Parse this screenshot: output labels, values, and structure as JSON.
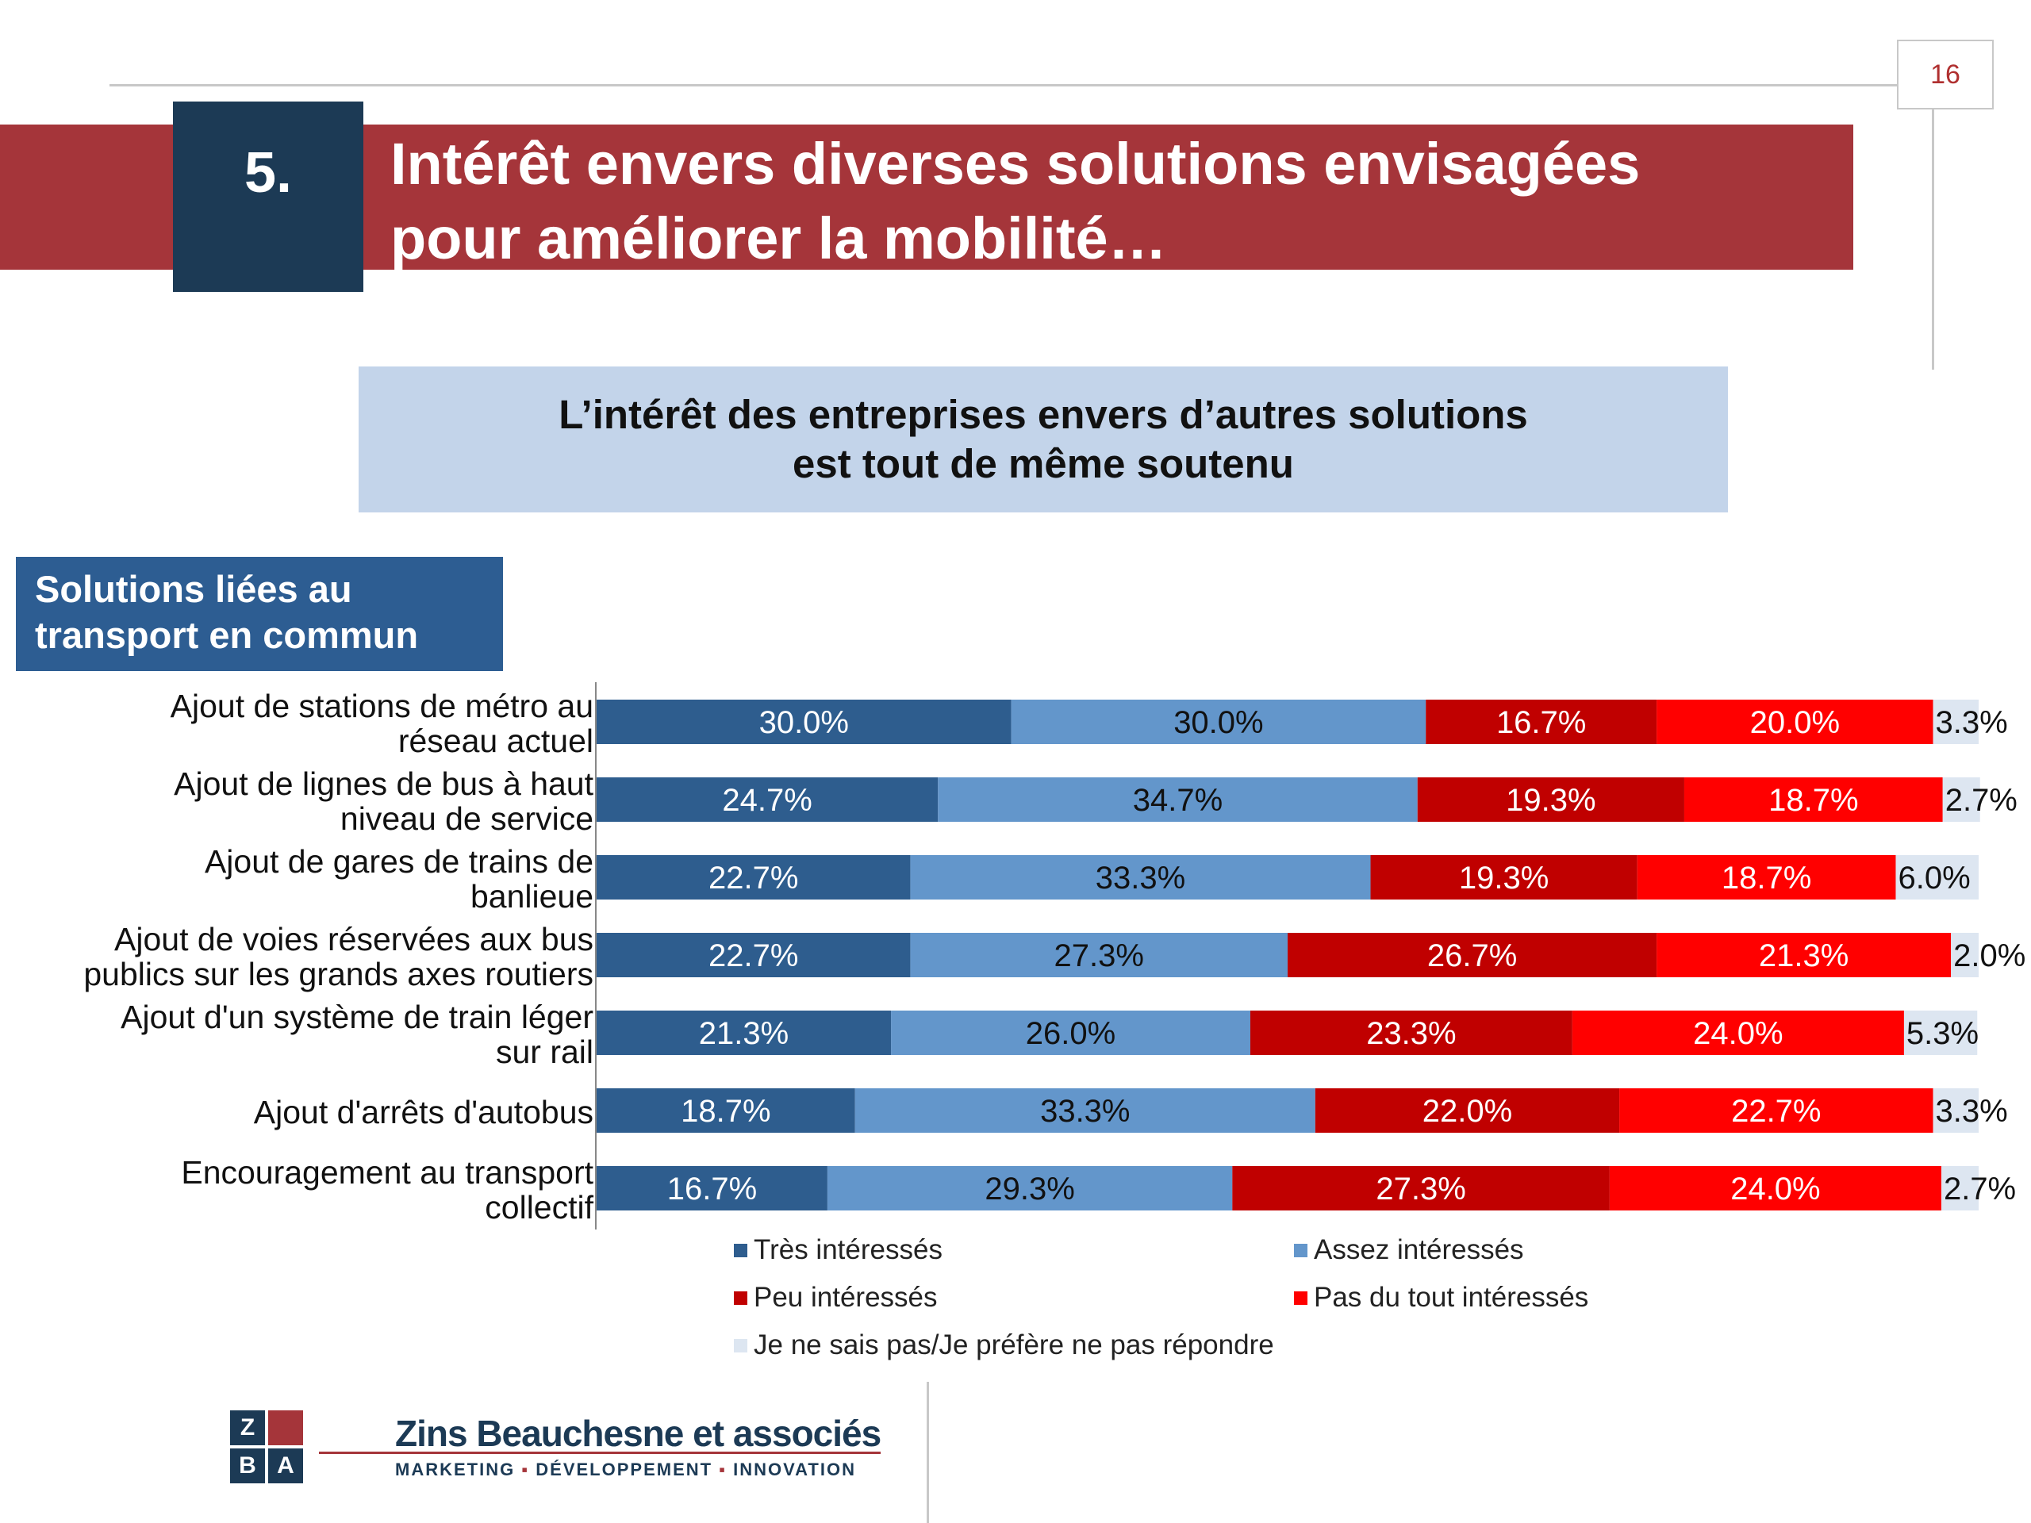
{
  "page": {
    "number": "16"
  },
  "header": {
    "section_number": "5.",
    "title_line1": "Intérêt envers diverses solutions envisagées",
    "title_line2": "pour améliorer la mobilité…"
  },
  "subtitle": {
    "line1": "L’intérêt des entreprises envers d’autres solutions",
    "line2": "est tout de même soutenu"
  },
  "category": {
    "line1": "Solutions liées au",
    "line2": "transport en commun"
  },
  "colors": {
    "tres": "#2e5d8e",
    "assez": "#6396cb",
    "peu": "#c00000",
    "pas": "#ff0000",
    "nsp": "#dde6f1",
    "title_band": "#a5353a",
    "section_box": "#1c3a55"
  },
  "chart_data": {
    "type": "bar",
    "orientation": "horizontal",
    "stacked": true,
    "xlim": [
      0,
      100
    ],
    "categories": [
      [
        "Ajout de stations de métro au",
        "réseau actuel"
      ],
      [
        "Ajout de lignes de bus à haut",
        "niveau de service"
      ],
      [
        "Ajout de gares de trains de",
        "banlieue"
      ],
      [
        "Ajout de voies réservées aux bus",
        "publics sur les grands axes routiers"
      ],
      [
        "Ajout d'un système de train léger",
        "sur rail"
      ],
      [
        "Ajout d'arrêts d'autobus"
      ],
      [
        "Encouragement au transport",
        "collectif"
      ]
    ],
    "series": [
      {
        "name": "Très intéressés",
        "color": "#2e5d8e",
        "values": [
          30.0,
          24.7,
          22.7,
          22.7,
          21.3,
          18.7,
          16.7
        ]
      },
      {
        "name": "Assez intéressés",
        "color": "#6396cb",
        "values": [
          30.0,
          34.7,
          33.3,
          27.3,
          26.0,
          33.3,
          29.3
        ]
      },
      {
        "name": "Peu intéressés",
        "color": "#c00000",
        "values": [
          16.7,
          19.3,
          19.3,
          26.7,
          23.3,
          22.0,
          27.3
        ]
      },
      {
        "name": "Pas du tout intéressés",
        "color": "#ff0000",
        "values": [
          20.0,
          18.7,
          18.7,
          21.3,
          24.0,
          22.7,
          24.0
        ]
      },
      {
        "name": "Je ne sais pas/Je préfère ne pas répondre",
        "color": "#dde6f1",
        "values": [
          3.3,
          2.7,
          6.0,
          2.0,
          5.3,
          3.3,
          2.7
        ]
      }
    ],
    "legend_position": "bottom",
    "grid": false
  },
  "legend": {
    "tres": "Très intéressés",
    "assez": "Assez intéressés",
    "peu": "Peu intéressés",
    "pas": "Pas du tout intéressés",
    "nsp": "Je ne sais pas/Je préfère ne pas répondre"
  },
  "logo": {
    "cells": [
      "Z",
      "B",
      "A"
    ],
    "name": "Zins Beauchesne et associés",
    "tagline_1": "MARKETING",
    "tagline_2": "DÉVELOPPEMENT",
    "tagline_3": "INNOVATION"
  }
}
